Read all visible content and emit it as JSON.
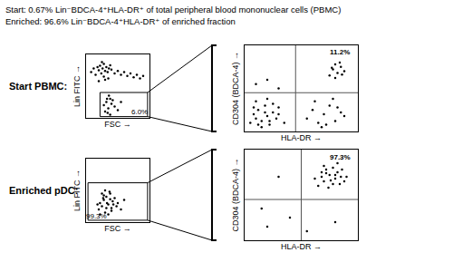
{
  "header": [
    "Start: 0.67% Lin⁻BDCA-4⁺HLA-DR⁺ of total peripheral blood mononuclear cells (PBMC)",
    "Enriched: 96.6% Lin⁻BDCA-4⁺HLA-DR⁺ of enriched fraction"
  ],
  "row_labels": [
    "Start PBMC:",
    "Enriched pDC:"
  ],
  "chart_data": [
    {
      "type": "scatter",
      "x_label": "FSC →",
      "y_label": "Lin FITC →",
      "xlim": [
        0,
        100
      ],
      "ylim": [
        0,
        100
      ],
      "xticks": [],
      "yticks": [],
      "tick_labels": false,
      "color": "#000000",
      "marker": "dot",
      "x": [
        8,
        12,
        15,
        18,
        20,
        22,
        24,
        26,
        28,
        30,
        32,
        34,
        36,
        38,
        40,
        45,
        50,
        55,
        60,
        65,
        70,
        75,
        80,
        85,
        90,
        25,
        30,
        35,
        20,
        28,
        28,
        32,
        35,
        38,
        30,
        40,
        42,
        34,
        36,
        45,
        50,
        55,
        38,
        33
      ],
      "y": [
        72,
        78,
        68,
        80,
        75,
        82,
        70,
        78,
        85,
        74,
        80,
        72,
        78,
        83,
        76,
        70,
        74,
        68,
        72,
        66,
        70,
        64,
        68,
        62,
        66,
        88,
        60,
        62,
        58,
        65,
        20,
        25,
        15,
        30,
        10,
        22,
        28,
        8,
        35,
        18,
        12,
        25,
        5,
        30
      ],
      "gate": {
        "x": [
          22,
          97
        ],
        "y": [
          2,
          40
        ],
        "label": {
          "text": "6.0%",
          "x": 84,
          "y": 9
        }
      }
    },
    {
      "type": "scatter",
      "x_label": "HLA-DR →",
      "y_label": "CD304 (BDCA-4) →",
      "xlim": [
        0,
        100
      ],
      "ylim": [
        0,
        100
      ],
      "xticks": [],
      "yticks": [],
      "tick_labels": false,
      "color": "#000000",
      "marker": "dot",
      "x": [
        5,
        8,
        10,
        12,
        15,
        18,
        20,
        22,
        25,
        28,
        30,
        10,
        15,
        20,
        25,
        8,
        12,
        18,
        22,
        30,
        35,
        55,
        60,
        65,
        70,
        75,
        80,
        85,
        62,
        72,
        82,
        88,
        68,
        78,
        75,
        78,
        80,
        82,
        85,
        88,
        80,
        84,
        77,
        86,
        10,
        20,
        30
      ],
      "y": [
        10,
        20,
        15,
        25,
        12,
        30,
        18,
        8,
        22,
        15,
        28,
        35,
        5,
        38,
        32,
        28,
        8,
        22,
        12,
        20,
        10,
        15,
        25,
        10,
        20,
        30,
        12,
        22,
        35,
        8,
        28,
        18,
        5,
        38,
        65,
        72,
        78,
        68,
        75,
        70,
        62,
        80,
        74,
        66,
        55,
        60,
        50
      ],
      "quadrant": {
        "x": 45,
        "y": 45,
        "label": {
          "text": "11.2%",
          "x": 84,
          "y": 92
        }
      }
    },
    {
      "type": "scatter",
      "x_label": "FSC →",
      "y_label": "Lin FITC →",
      "xlim": [
        0,
        100
      ],
      "ylim": [
        0,
        100
      ],
      "xticks": [],
      "yticks": [],
      "tick_labels": false,
      "color": "#000000",
      "marker": "dot",
      "x": [
        20,
        22,
        25,
        28,
        30,
        32,
        35,
        38,
        40,
        42,
        45,
        48,
        25,
        30,
        35,
        40,
        28,
        33,
        38,
        43,
        22,
        27,
        32,
        37,
        50,
        55,
        60,
        18
      ],
      "y": [
        20,
        30,
        25,
        35,
        15,
        40,
        28,
        45,
        22,
        33,
        38,
        25,
        45,
        50,
        12,
        18,
        42,
        30,
        36,
        28,
        12,
        38,
        22,
        48,
        30,
        20,
        35,
        28
      ],
      "gate": {
        "x": [
          3,
          97
        ],
        "y": [
          3,
          62
        ],
        "label": {
          "text": "99.3%",
          "x": 17,
          "y": 9
        }
      }
    },
    {
      "type": "scatter",
      "x_label": "HLA-DR →",
      "y_label": "CD304 (BDCA-4) →",
      "xlim": [
        0,
        100
      ],
      "ylim": [
        0,
        100
      ],
      "xticks": [],
      "yticks": [],
      "tick_labels": false,
      "color": "#000000",
      "marker": "dot",
      "x": [
        65,
        68,
        70,
        72,
        75,
        78,
        80,
        82,
        85,
        88,
        70,
        74,
        78,
        82,
        86,
        72,
        76,
        80,
        84,
        68,
        90,
        62,
        20,
        40,
        55,
        30,
        15,
        80
      ],
      "y": [
        60,
        70,
        65,
        78,
        72,
        80,
        68,
        75,
        70,
        65,
        82,
        58,
        62,
        85,
        78,
        74,
        66,
        72,
        62,
        75,
        70,
        68,
        15,
        25,
        10,
        70,
        35,
        20
      ],
      "quadrant": {
        "x": 50,
        "y": 45,
        "label": {
          "text": "97.3%",
          "x": 84,
          "y": 92
        }
      }
    }
  ]
}
